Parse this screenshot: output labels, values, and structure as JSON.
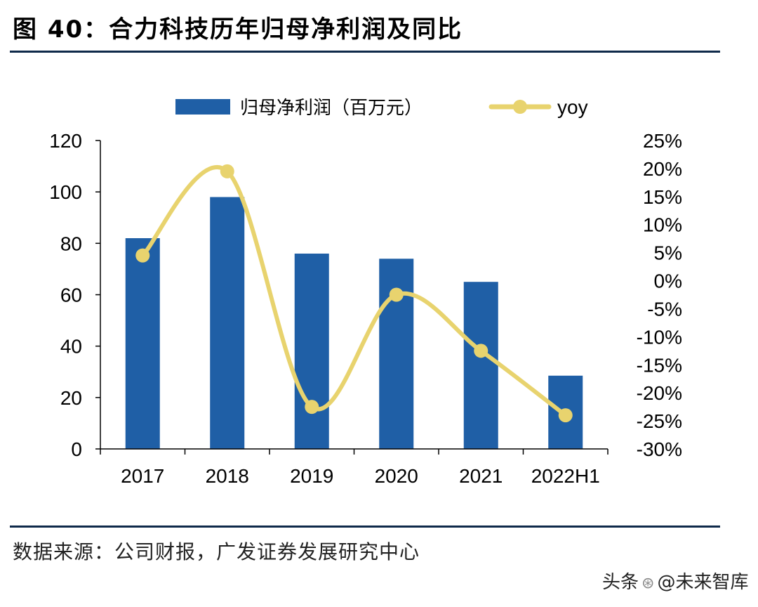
{
  "title": "图 40：合力科技历年归母净利润及同比",
  "source": "数据来源：公司财报，广发证券发展研究中心",
  "watermark": {
    "prefix": "头条",
    "handle": "@未来智库"
  },
  "colors": {
    "bar": "#1f5fa6",
    "line": "#e8d36e",
    "rule": "#0f2a4a",
    "axis": "#000000"
  },
  "chart_data": {
    "type": "bar",
    "categories": [
      "2017",
      "2018",
      "2019",
      "2020",
      "2021",
      "2022H1"
    ],
    "series": [
      {
        "name": "归母净利润（百万元）",
        "type": "bar",
        "axis": "left",
        "values": [
          82,
          98,
          76,
          74,
          65,
          28.5
        ]
      },
      {
        "name": "yoy",
        "type": "line",
        "axis": "right",
        "smooth": true,
        "values": [
          4.5,
          19.5,
          -22.5,
          -2.5,
          -12.5,
          -24
        ]
      }
    ],
    "y_left": {
      "min": 0,
      "max": 120,
      "ticks": [
        "0",
        "20",
        "40",
        "60",
        "80",
        "100",
        "120"
      ]
    },
    "y_right": {
      "min": -30,
      "max": 25,
      "ticks": [
        "-30%",
        "-25%",
        "-20%",
        "-15%",
        "-10%",
        "-5%",
        "0%",
        "5%",
        "10%",
        "15%",
        "20%",
        "25%"
      ]
    },
    "legend_position": "top-center",
    "grid": false
  }
}
